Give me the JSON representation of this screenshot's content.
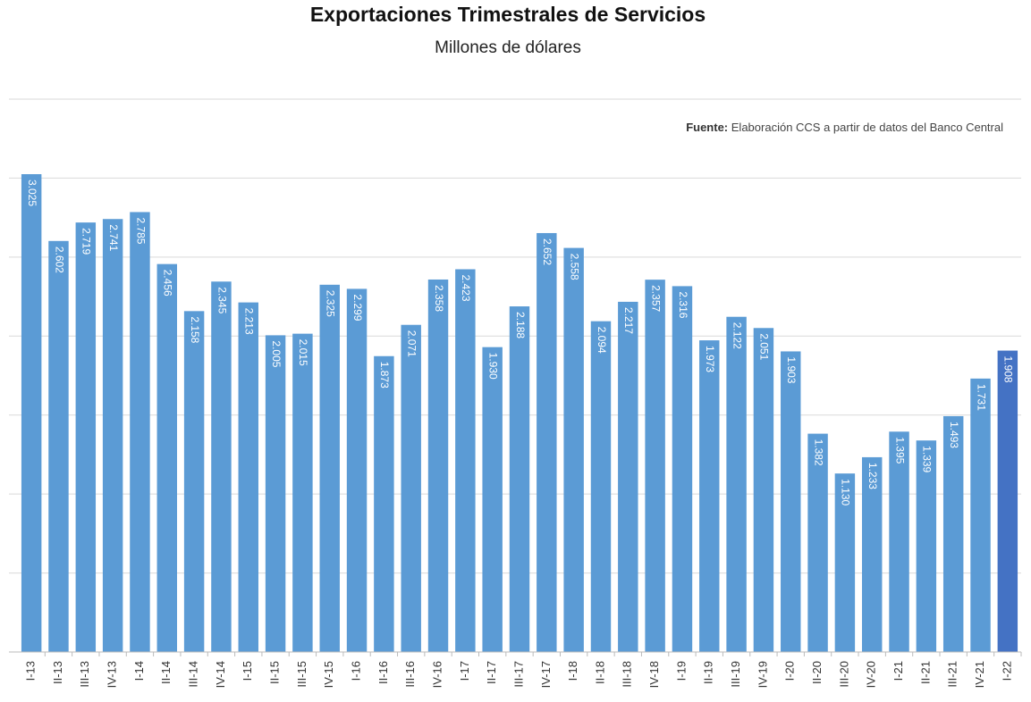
{
  "chart_data": {
    "type": "bar",
    "title": "Exportaciones Trimestrales de Servicios",
    "subtitle": "Millones de dólares",
    "source_label": "Fuente:",
    "source": "Elaboración CCS a partir de datos del Banco Central",
    "categories": [
      "I-13",
      "II-13",
      "III-13",
      "IV-13",
      "I-14",
      "II-14",
      "III-14",
      "IV-14",
      "I-15",
      "II-15",
      "III-15",
      "IV-15",
      "I-16",
      "II-16",
      "III-16",
      "IV-16",
      "I-17",
      "II-17",
      "III-17",
      "IV-17",
      "I-18",
      "II-18",
      "III-18",
      "IV-18",
      "I-19",
      "II-19",
      "III-19",
      "IV-19",
      "I-20",
      "II-20",
      "III-20",
      "IV-20",
      "I-21",
      "II-21",
      "III-21",
      "IV-21",
      "I-22"
    ],
    "values": [
      3025,
      2602,
      2719,
      2741,
      2785,
      2456,
      2158,
      2345,
      2213,
      2005,
      2015,
      2325,
      2299,
      1873,
      2071,
      2358,
      2423,
      1930,
      2188,
      2652,
      2558,
      2094,
      2217,
      2357,
      2316,
      1973,
      2122,
      2051,
      1903,
      1382,
      1130,
      1233,
      1395,
      1339,
      1493,
      1731,
      1908
    ],
    "value_labels": [
      "3.025",
      "2.602",
      "2.719",
      "2.741",
      "2.785",
      "2.456",
      "2.158",
      "2.345",
      "2.213",
      "2.005",
      "2.015",
      "2.325",
      "2.299",
      "1.873",
      "2.071",
      "2.358",
      "2.423",
      "1.930",
      "2.188",
      "2.652",
      "2.558",
      "2.094",
      "2.217",
      "2.357",
      "2.316",
      "1.973",
      "2.122",
      "2.051",
      "1.903",
      "1.382",
      "1.130",
      "1.233",
      "1.395",
      "1.339",
      "1.493",
      "1.731",
      "1.908"
    ],
    "colors": [
      "#5b9bd5",
      "#5b9bd5",
      "#5b9bd5",
      "#5b9bd5",
      "#5b9bd5",
      "#5b9bd5",
      "#5b9bd5",
      "#5b9bd5",
      "#5b9bd5",
      "#5b9bd5",
      "#5b9bd5",
      "#5b9bd5",
      "#5b9bd5",
      "#5b9bd5",
      "#5b9bd5",
      "#5b9bd5",
      "#5b9bd5",
      "#5b9bd5",
      "#5b9bd5",
      "#5b9bd5",
      "#5b9bd5",
      "#5b9bd5",
      "#5b9bd5",
      "#5b9bd5",
      "#5b9bd5",
      "#5b9bd5",
      "#5b9bd5",
      "#5b9bd5",
      "#5b9bd5",
      "#5b9bd5",
      "#5b9bd5",
      "#5b9bd5",
      "#5b9bd5",
      "#5b9bd5",
      "#5b9bd5",
      "#5b9bd5",
      "#4472c4"
    ],
    "ylim": [
      0,
      3500
    ],
    "yticks": [
      0,
      500,
      1000,
      1500,
      2000,
      2500,
      3000,
      3500
    ],
    "grid": true
  }
}
